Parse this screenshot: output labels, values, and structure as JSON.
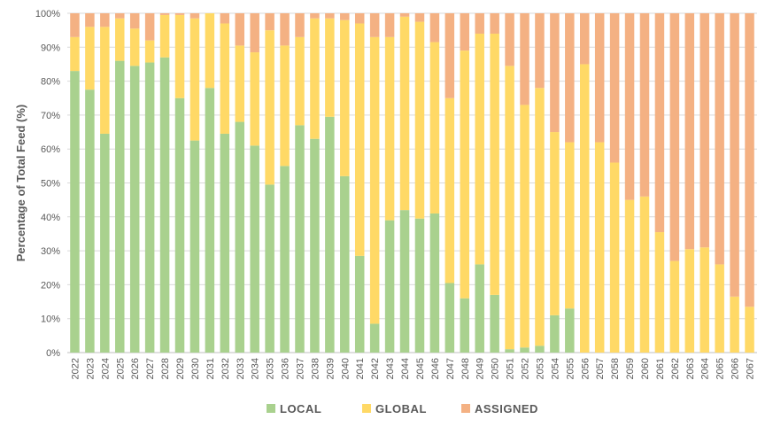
{
  "chart_data": {
    "type": "bar",
    "stacked": true,
    "normalized_percent": true,
    "ylabel": "Percentage of Total Feed (%)",
    "xlabel": "",
    "ylim": [
      0,
      100
    ],
    "yticks": [
      "0%",
      "10%",
      "20%",
      "30%",
      "40%",
      "50%",
      "60%",
      "70%",
      "80%",
      "90%",
      "100%"
    ],
    "grid": true,
    "legend_position": "bottom",
    "categories": [
      "2022",
      "2023",
      "2024",
      "2025",
      "2026",
      "2027",
      "2028",
      "2029",
      "2030",
      "2031",
      "2032",
      "2033",
      "2034",
      "2035",
      "2036",
      "2037",
      "2038",
      "2039",
      "2040",
      "2041",
      "2042",
      "2043",
      "2044",
      "2045",
      "2046",
      "2047",
      "2048",
      "2049",
      "2050",
      "2051",
      "2052",
      "2053",
      "2054",
      "2055",
      "2056",
      "2057",
      "2058",
      "2059",
      "2060",
      "2061",
      "2062",
      "2063",
      "2064",
      "2065",
      "2066",
      "2067"
    ],
    "series": [
      {
        "name": "LOCAL",
        "color": "#a9d18e",
        "values": [
          83,
          77.5,
          64.5,
          86,
          84.5,
          85.5,
          87,
          75,
          62.5,
          78,
          64.5,
          68,
          61,
          49.5,
          55,
          67,
          63,
          69.5,
          52,
          28.5,
          8.5,
          39,
          42,
          39.5,
          41,
          20.5,
          16,
          26,
          17,
          1,
          1.5,
          2,
          11,
          13,
          0,
          0,
          0,
          0,
          0,
          0,
          0,
          0,
          0,
          0,
          0,
          0
        ]
      },
      {
        "name": "GLOBAL",
        "color": "#ffd966",
        "values": [
          10,
          18.5,
          31.5,
          12.5,
          11,
          6.5,
          12.5,
          24.5,
          36,
          22,
          32.5,
          22.5,
          27.5,
          45.5,
          35.5,
          26,
          35.5,
          29,
          46,
          68.5,
          84.5,
          54,
          57,
          58,
          50.5,
          54.5,
          73,
          68,
          77,
          83.5,
          71.5,
          76,
          54,
          49,
          85,
          62,
          56,
          45,
          46,
          35.5,
          27,
          30.5,
          31,
          26,
          16.5,
          13.5
        ]
      },
      {
        "name": "ASSIGNED",
        "color": "#f4b183",
        "values": [
          7,
          4,
          4,
          1.5,
          4.5,
          8,
          0.5,
          0.5,
          1.5,
          0,
          3,
          9.5,
          11.5,
          5,
          9.5,
          7,
          1.5,
          1.5,
          2,
          3,
          7,
          7,
          1,
          2.5,
          8.5,
          25,
          11,
          6,
          6,
          15.5,
          27,
          22,
          35,
          38,
          15,
          38,
          44,
          55,
          54,
          64.5,
          73,
          69.5,
          69,
          74,
          83.5,
          86.5
        ]
      }
    ]
  }
}
